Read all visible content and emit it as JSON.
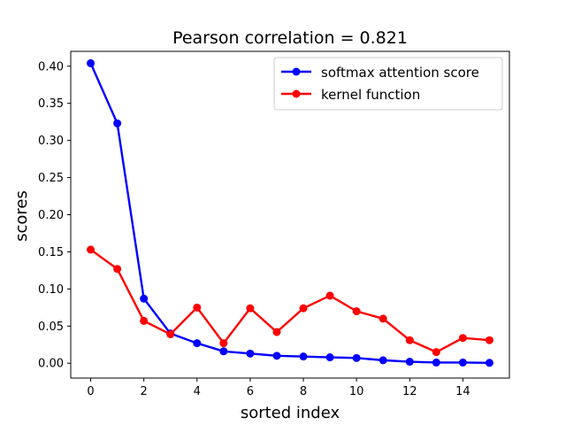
{
  "chart_data": {
    "type": "line",
    "title": "Pearson correlation =  0.821",
    "xlabel": "sorted index",
    "ylabel": "scores",
    "x": [
      0,
      1,
      2,
      3,
      4,
      5,
      6,
      7,
      8,
      9,
      10,
      11,
      12,
      13,
      14,
      15
    ],
    "xlim": [
      -0.75,
      15.75
    ],
    "ylim": [
      -0.02,
      0.42
    ],
    "xticks": [
      0,
      2,
      4,
      6,
      8,
      10,
      12,
      14
    ],
    "xtick_labels": [
      "0",
      "2",
      "4",
      "6",
      "8",
      "10",
      "12",
      "14"
    ],
    "yticks": [
      0.0,
      0.05,
      0.1,
      0.15,
      0.2,
      0.25,
      0.3,
      0.35,
      0.4
    ],
    "ytick_labels": [
      "0.00",
      "0.05",
      "0.10",
      "0.15",
      "0.20",
      "0.25",
      "0.30",
      "0.35",
      "0.40"
    ],
    "grid": false,
    "legend_position": "top-right",
    "series": [
      {
        "name": "softmax attention score",
        "color": "#0000ff",
        "values": [
          0.404,
          0.323,
          0.087,
          0.04,
          0.027,
          0.016,
          0.013,
          0.01,
          0.009,
          0.008,
          0.007,
          0.004,
          0.002,
          0.001,
          0.001,
          0.0005
        ]
      },
      {
        "name": "kernel function",
        "color": "#ff0000",
        "values": [
          0.153,
          0.127,
          0.057,
          0.039,
          0.075,
          0.027,
          0.074,
          0.042,
          0.074,
          0.091,
          0.07,
          0.06,
          0.031,
          0.015,
          0.034,
          0.031
        ]
      }
    ]
  }
}
